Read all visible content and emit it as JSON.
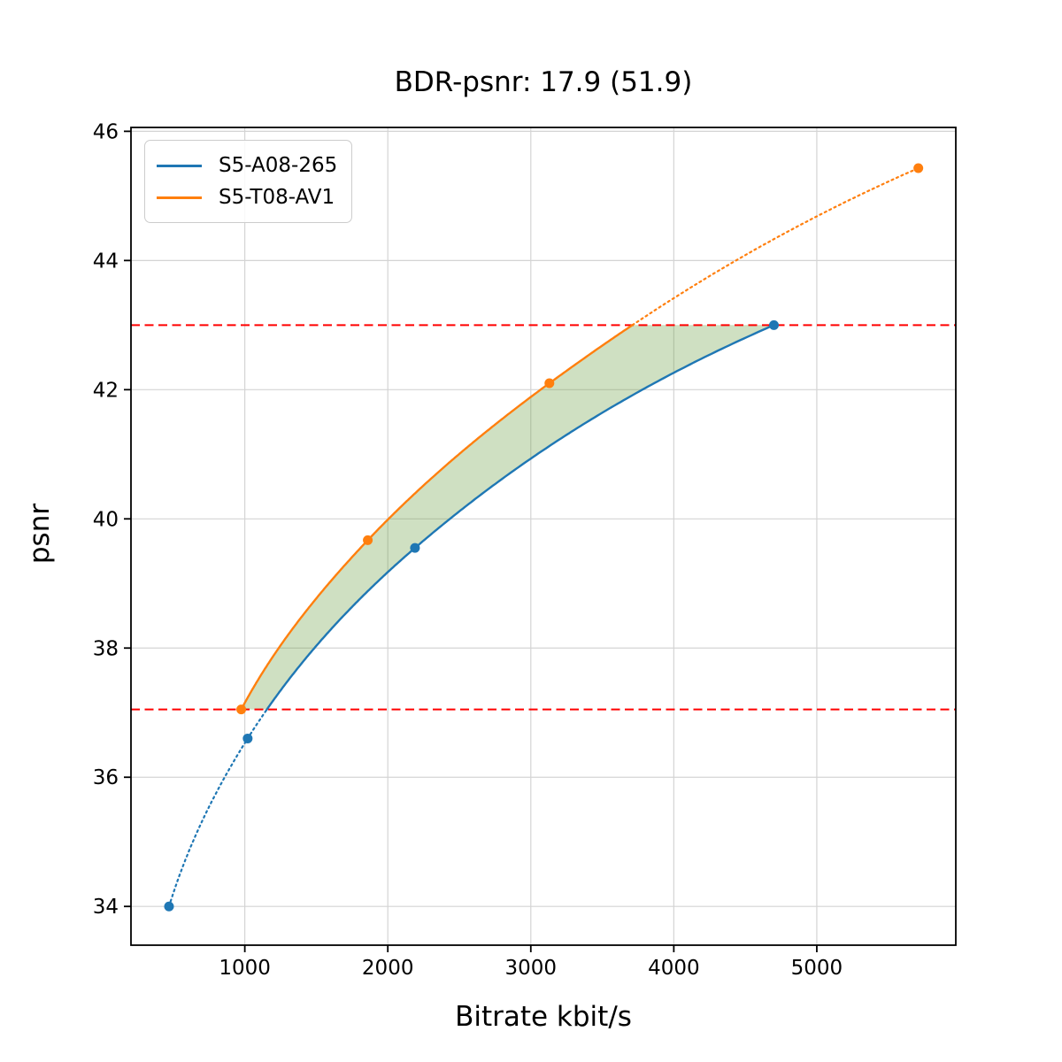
{
  "chart_data": {
    "type": "line",
    "title": "BDR-psnr: 17.9 (51.9)",
    "xlabel": "Bitrate kbit/s",
    "ylabel": "psnr",
    "xlim": [
      204,
      5972
    ],
    "ylim": [
      33.4,
      46.06
    ],
    "xticks": [
      1000,
      2000,
      3000,
      4000,
      5000
    ],
    "yticks": [
      34,
      36,
      38,
      40,
      42,
      44,
      46
    ],
    "grid": true,
    "grid_color": "#d4d4d4",
    "spine_color": "#000000",
    "legend_position": "upper-left",
    "interpolation": "pchip-log-x",
    "series": [
      {
        "name": "S5-A08-265",
        "color": "#1f77b4",
        "x": [
          470,
          1020,
          2190,
          4700
        ],
        "y": [
          34.0,
          36.6,
          39.55,
          43.0
        ]
      },
      {
        "name": "S5-T08-AV1",
        "color": "#ff7f0e",
        "x": [
          975,
          1860,
          3130,
          5710
        ],
        "y": [
          37.05,
          39.67,
          42.1,
          45.43
        ]
      }
    ],
    "overlap_lines": {
      "low": 37.05,
      "high": 43.0,
      "color": "#ff0000",
      "style": "dashed"
    },
    "fill_between": {
      "color": "#6ea046",
      "opacity": 0.33,
      "range": [
        37.05,
        43.0
      ]
    }
  }
}
